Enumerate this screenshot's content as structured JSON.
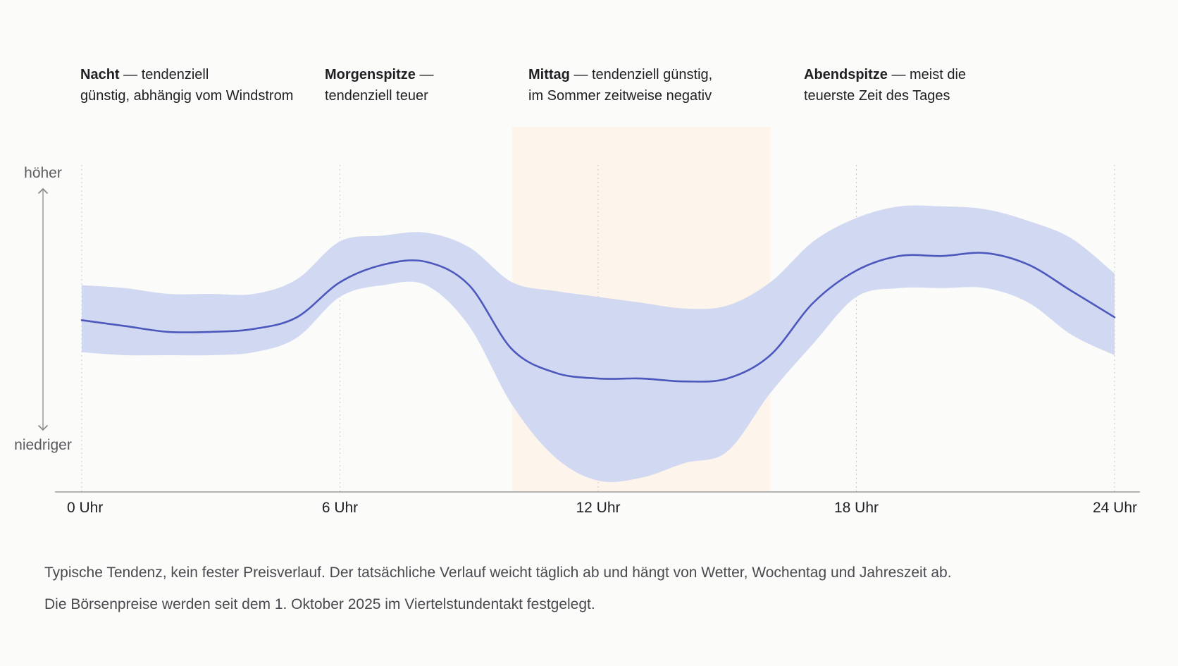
{
  "chart_data": {
    "type": "area",
    "x_unit": "hour of day",
    "xlim": [
      0,
      24
    ],
    "ylim": [
      0,
      100
    ],
    "y_scale_note": "relative, no numeric scale printed",
    "x_ticks": [
      {
        "x": 0,
        "label": "0 Uhr"
      },
      {
        "x": 6,
        "label": "6 Uhr"
      },
      {
        "x": 12,
        "label": "12 Uhr"
      },
      {
        "x": 18,
        "label": "18 Uhr"
      },
      {
        "x": 24,
        "label": "24 Uhr"
      }
    ],
    "y_axis": {
      "top_label": "höher",
      "bottom_label": "niedriger"
    },
    "highlight_range": [
      10,
      16
    ],
    "series": [
      {
        "type": "line",
        "x": [
          0,
          1,
          2,
          3,
          4,
          5,
          6,
          7,
          8,
          9,
          10,
          11,
          12,
          13,
          14,
          15,
          16,
          17,
          18,
          19,
          20,
          21,
          22,
          23,
          24
        ],
        "values": [
          55,
          53,
          51,
          51,
          52,
          56,
          68,
          74,
          75,
          67,
          45,
          37,
          35,
          35,
          34,
          35,
          43,
          61,
          72,
          77,
          77,
          78,
          74,
          65,
          56
        ]
      },
      {
        "type": "band",
        "x": [
          0,
          1,
          2,
          3,
          4,
          5,
          6,
          7,
          8,
          9,
          10,
          11,
          12,
          13,
          14,
          15,
          16,
          17,
          18,
          19,
          20,
          21,
          22,
          23,
          24
        ],
        "upper": [
          67,
          66,
          64,
          64,
          64,
          69,
          82,
          84,
          85,
          80,
          68,
          65,
          63,
          61,
          59,
          60,
          68,
          82,
          90,
          94,
          94,
          93,
          89,
          83,
          71
        ],
        "lower": [
          44,
          43,
          43,
          43,
          44,
          49,
          63,
          67,
          67,
          53,
          26,
          8,
          0,
          1,
          6,
          10,
          30,
          47,
          63,
          66,
          66,
          66,
          61,
          50,
          43
        ]
      }
    ],
    "colors": {
      "line": "#4d58bd",
      "band": "#d1d8f1",
      "highlight": "#fdf4eb",
      "axis": "#8a8a8a",
      "grid": "#c8c8cc"
    }
  },
  "annotations": [
    {
      "bold": "Nacht",
      "rest_1": " — tendenziell",
      "line_2": "günstig, abhängig vom Windstrom"
    },
    {
      "bold": "Morgenspitze",
      "rest_1": " —",
      "line_2": "tendenziell teuer"
    },
    {
      "bold": "Mittag",
      "rest_1": " — tendenziell günstig,",
      "line_2": "im Sommer zeitweise negativ"
    },
    {
      "bold": "Abendspitze",
      "rest_1": " — meist die",
      "line_2": "teuerste Zeit des Tages"
    }
  ],
  "notes": [
    "Typische Tendenz, kein fester Preisverlauf. Der tatsächliche Verlauf weicht täglich ab und hängt von Wetter, Wochentag und Jahreszeit ab.",
    "Die Börsenpreise werden seit dem 1. Oktober 2025 im Viertelstundentakt festgelegt."
  ]
}
